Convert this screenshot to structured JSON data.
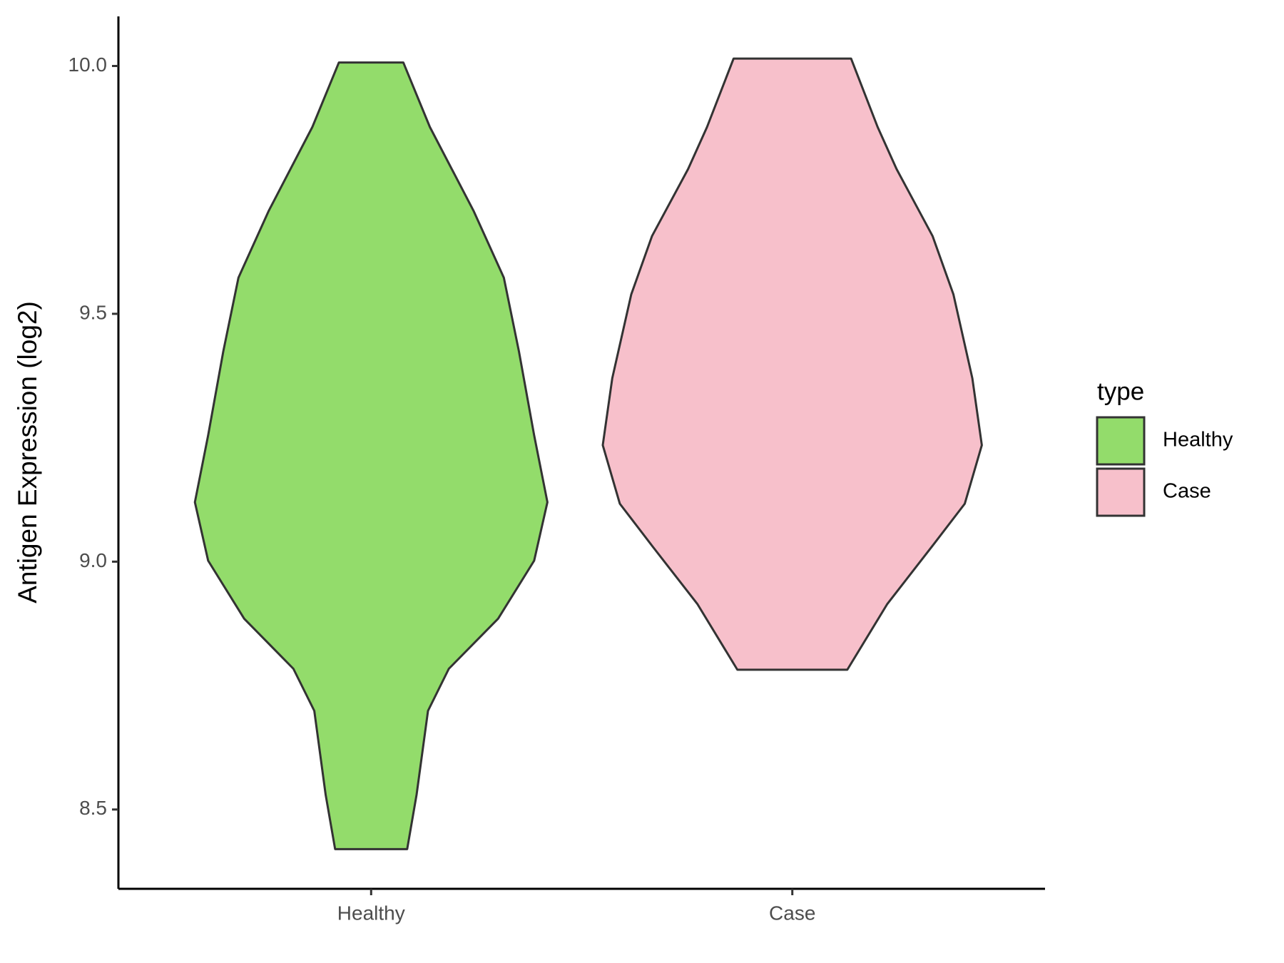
{
  "chart_data": {
    "type": "violin",
    "y_label": "Antigen Expression (log2)",
    "categories": [
      "Healthy",
      "Case"
    ],
    "legend_title": "type",
    "legend_position": "right",
    "series": [
      {
        "name": "Healthy",
        "color": "#93dc6b",
        "y": [
          8.42,
          8.53,
          8.699,
          8.784,
          8.885,
          9.002,
          9.12,
          9.255,
          9.424,
          9.573,
          9.708,
          9.877,
          10.007
        ],
        "density": [
          0.19,
          0.24,
          0.3,
          0.41,
          0.67,
          0.86,
          0.93,
          0.86,
          0.78,
          0.7,
          0.54,
          0.31,
          0.17
        ]
      },
      {
        "name": "Case",
        "color": "#f7c0cb",
        "y": [
          8.782,
          8.914,
          9.032,
          9.117,
          9.235,
          9.37,
          9.539,
          9.657,
          9.792,
          9.877,
          10.015
        ],
        "density": [
          0.29,
          0.5,
          0.74,
          0.91,
          1.0,
          0.95,
          0.85,
          0.74,
          0.55,
          0.45,
          0.31
        ]
      }
    ],
    "ylim": [
      8.34,
      10.1
    ],
    "yticks": [
      {
        "value": 8.5,
        "label": "8.5"
      },
      {
        "value": 9,
        "label": "9.0"
      },
      {
        "value": 9.5,
        "label": "9.5"
      },
      {
        "value": 10,
        "label": "10.0"
      }
    ],
    "grid": false
  }
}
